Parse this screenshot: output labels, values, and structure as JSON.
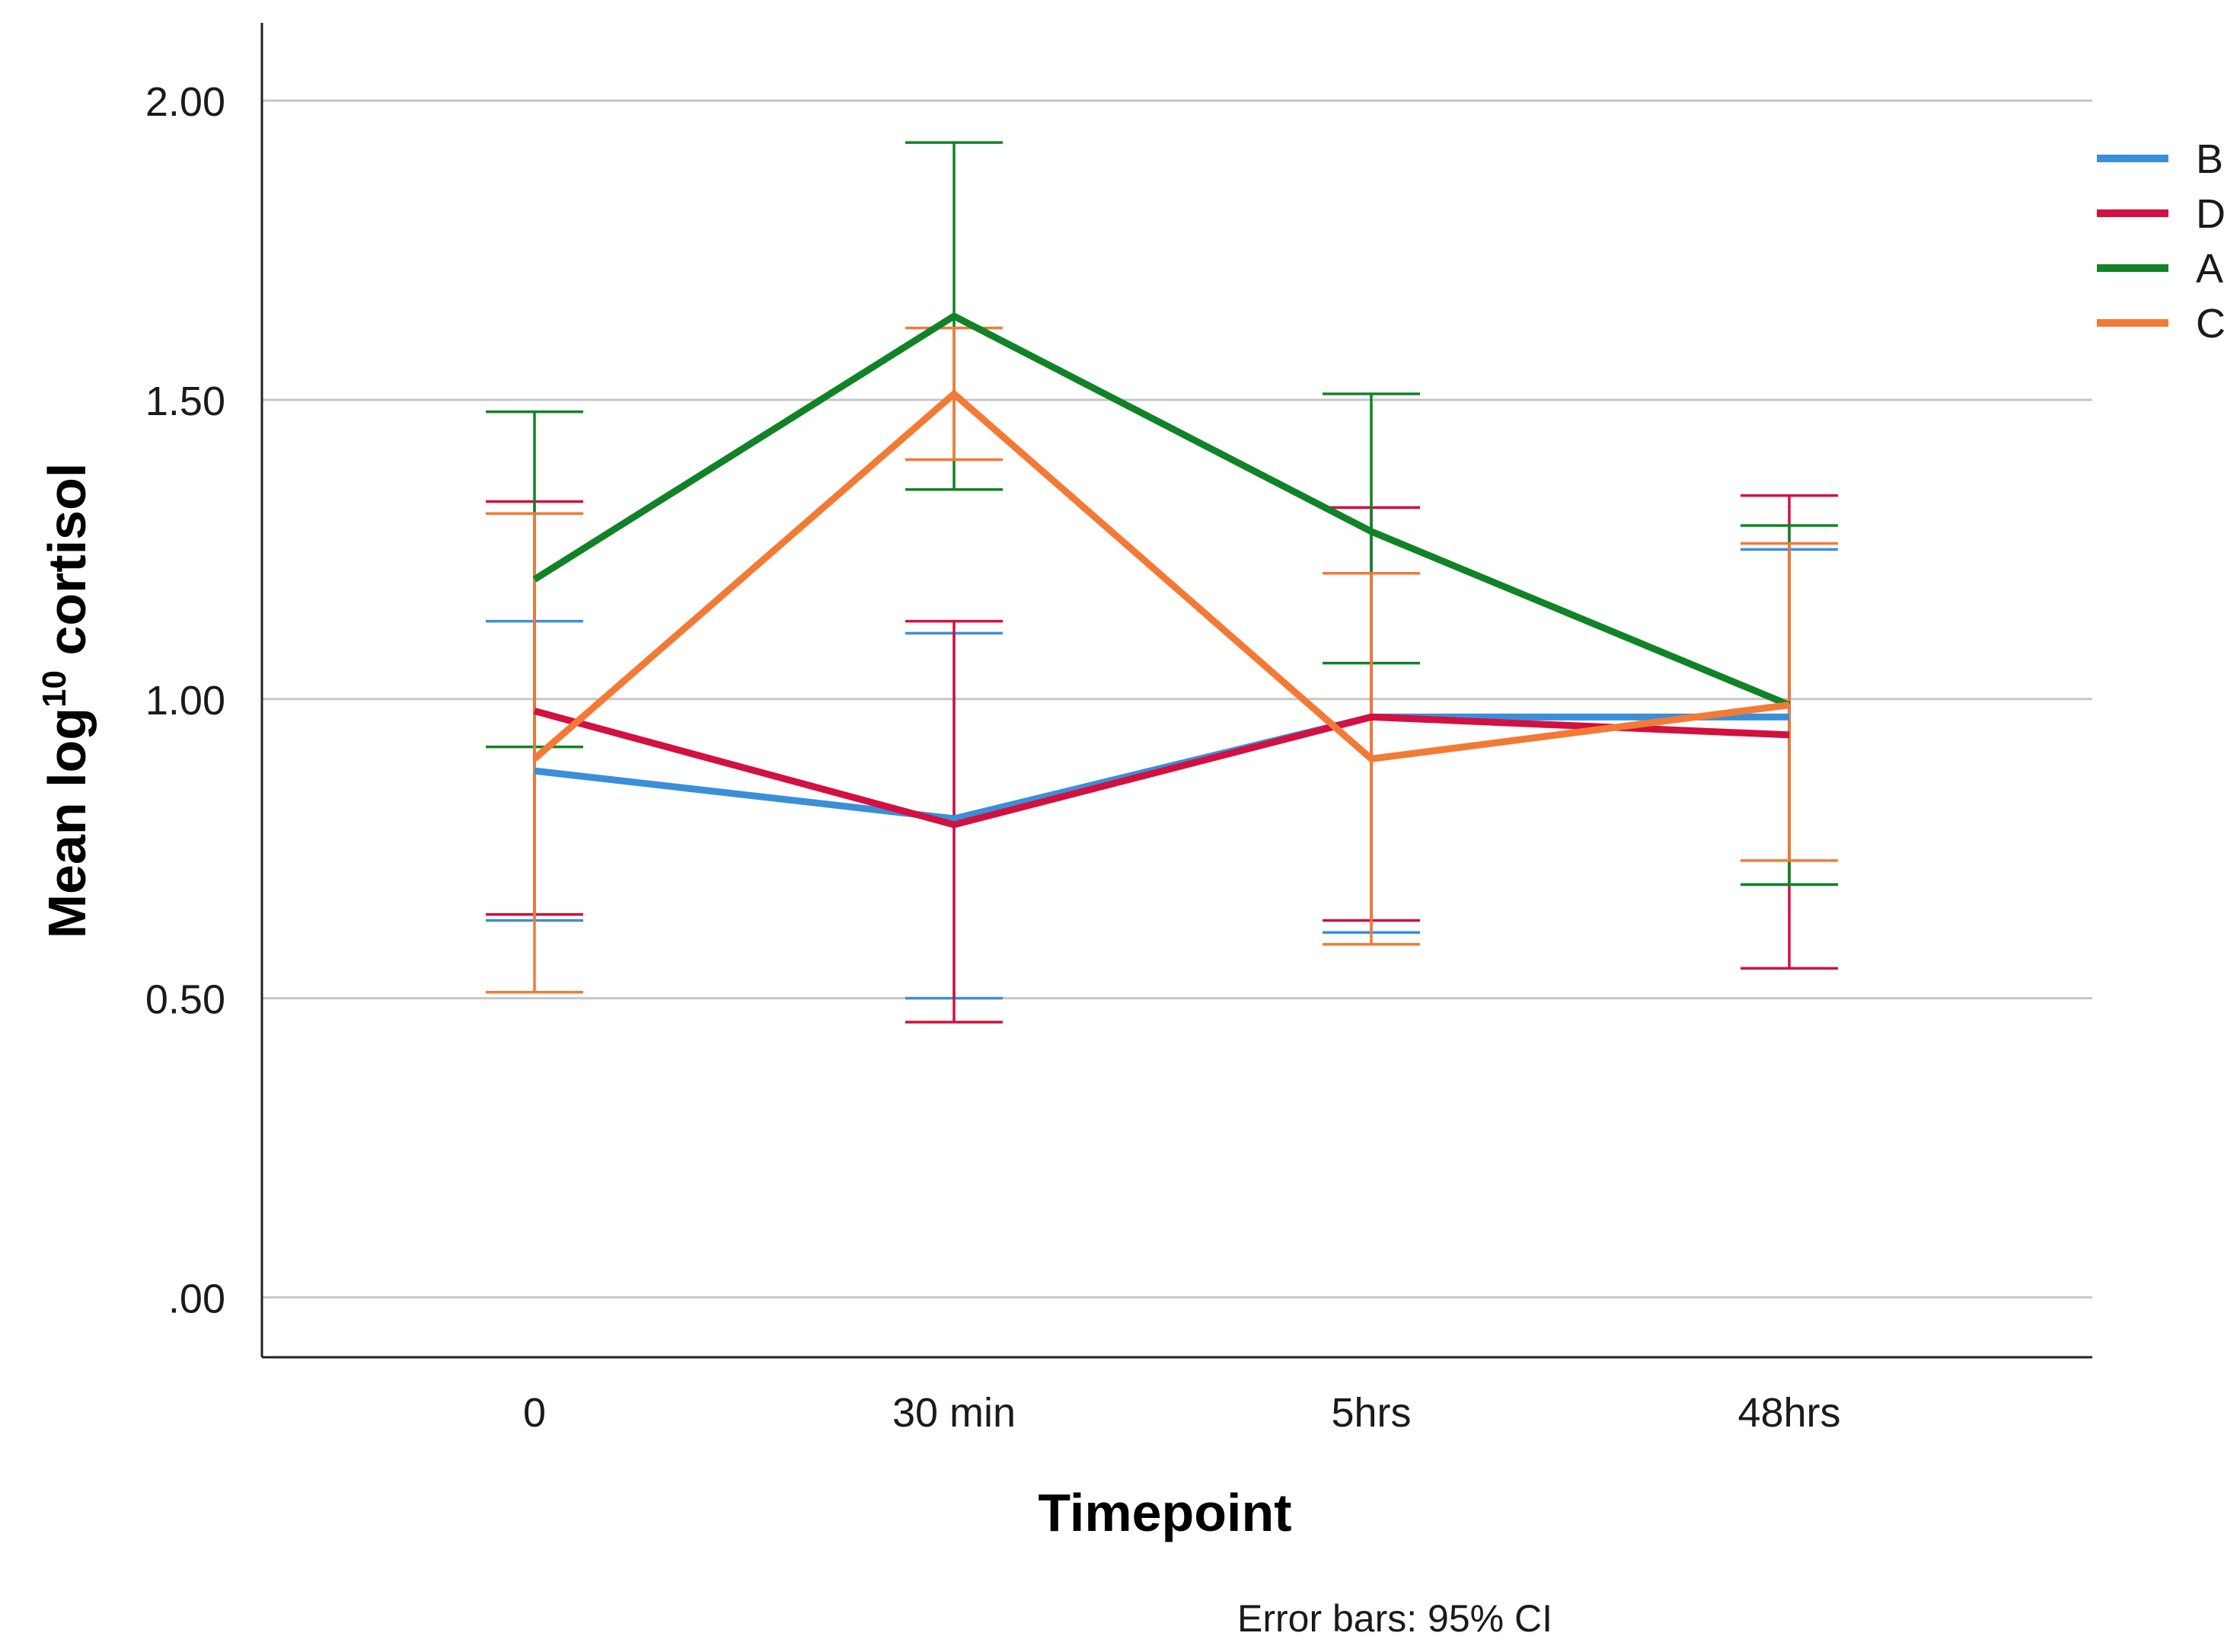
{
  "chart_data": {
    "type": "line",
    "title": "",
    "xlabel": "Timepoint",
    "ylabel": {
      "prefix": "Mean log",
      "superscript": "10",
      "suffix": " cortisol"
    },
    "categories": [
      "0",
      "30 min",
      "5hrs",
      "48hrs"
    ],
    "ylim": [
      -0.1,
      2.13
    ],
    "yticks": [
      0.0,
      0.5,
      1.0,
      1.5,
      2.0
    ],
    "ytick_labels": [
      ".00",
      "0.50",
      "1.00",
      "1.50",
      "2.00"
    ],
    "grid": true,
    "legend_position": "top-right",
    "note": "Error bars: 95% CI",
    "series": [
      {
        "name": "B",
        "color": "#3b8fd8",
        "values": [
          0.88,
          0.8,
          0.97,
          0.97
        ],
        "ci_low": [
          0.63,
          0.5,
          0.61,
          0.69
        ],
        "ci_high": [
          1.13,
          1.11,
          1.32,
          1.25
        ]
      },
      {
        "name": "D",
        "color": "#d3103f",
        "values": [
          0.98,
          0.79,
          0.97,
          0.94
        ],
        "ci_low": [
          0.64,
          0.46,
          0.63,
          0.55
        ],
        "ci_high": [
          1.33,
          1.13,
          1.32,
          1.34
        ]
      },
      {
        "name": "A",
        "color": "#108326",
        "values": [
          1.2,
          1.64,
          1.28,
          0.99
        ],
        "ci_low": [
          0.92,
          1.35,
          1.06,
          0.69
        ],
        "ci_high": [
          1.48,
          1.93,
          1.51,
          1.29
        ]
      },
      {
        "name": "C",
        "color": "#f37a35",
        "values": [
          0.9,
          1.51,
          0.9,
          0.99
        ],
        "ci_low": [
          0.51,
          1.4,
          0.59,
          0.73
        ],
        "ci_high": [
          1.31,
          1.62,
          1.21,
          1.26
        ]
      }
    ]
  }
}
